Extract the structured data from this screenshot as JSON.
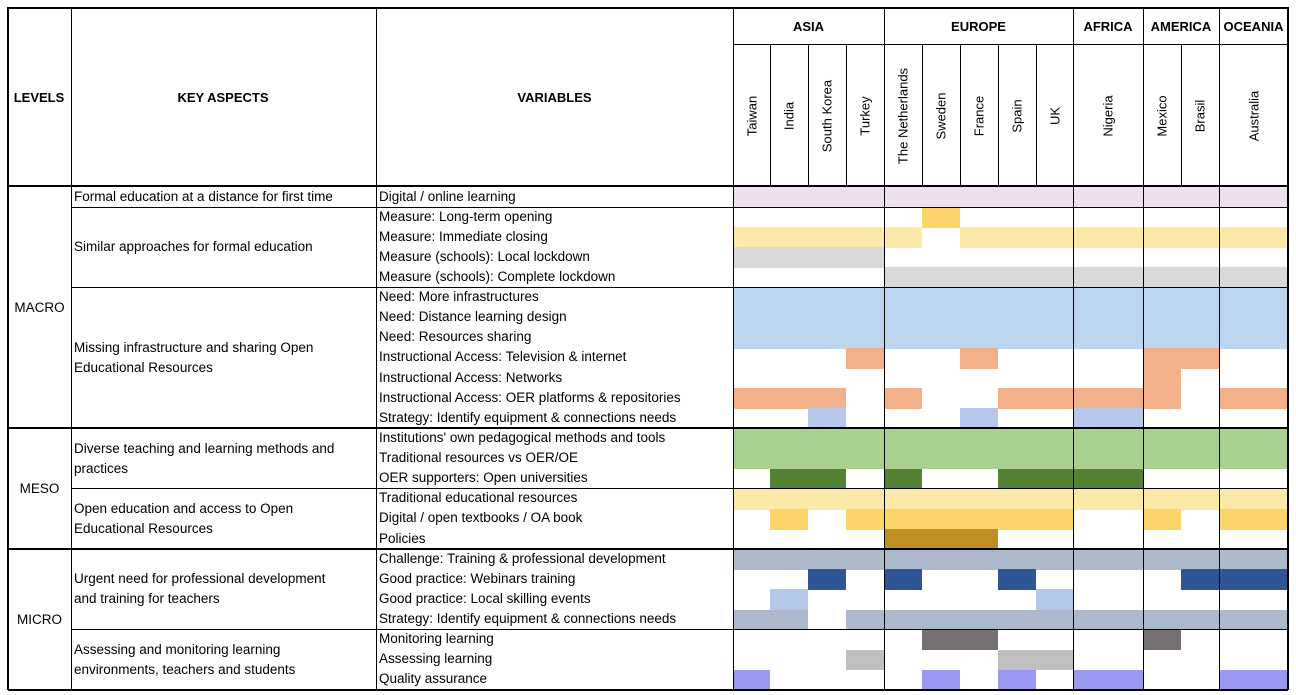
{
  "headers": {
    "levels": "LEVELS",
    "key_aspects": "KEY ASPECTS",
    "variables": "VARIABLES"
  },
  "regions": [
    "ASIA",
    "EUROPE",
    "AFRICA",
    "AMERICA",
    "OCEANIA"
  ],
  "countries": [
    "Taiwan",
    "India",
    "South Korea",
    "Turkey",
    "The Netherlands",
    "Sweden",
    "France",
    "Spain",
    "UK",
    "Nigeria",
    "Mexico",
    "Brasil",
    "Australia"
  ],
  "levels": [
    "MACRO",
    "MESO",
    "MICRO"
  ],
  "aspects": [
    "Formal education at a distance for first time",
    "Similar approaches for formal education",
    "Missing infrastructure and sharing Open Educational Resources",
    "Diverse teaching and learning methods and practices",
    "Open education and access to Open Educational Resources",
    "Urgent need for professional development and training for teachers",
    "Assessing and monitoring learning environments, teachers and students"
  ],
  "variables": [
    "Digital / online learning",
    "Measure: Long-term opening",
    "Measure: Immediate closing",
    "Measure (schools): Local lockdown",
    "Measure (schools): Complete lockdown",
    "Need: More infrastructures",
    "Need: Distance learning design",
    "Need: Resources sharing",
    "Instructional Access: Television & internet",
    "Instructional Access: Networks",
    "Instructional Access: OER platforms & repositories",
    "Strategy: Identify equipment & connections needs",
    "Institutions' own pedagogical methods and tools",
    "Traditional resources vs OER/OE",
    "OER supporters: Open universities",
    "Traditional educational resources",
    "Digital / open textbooks / OA book",
    "Policies",
    "Challenge: Training & professional development",
    "Good practice: Webinars training",
    "Good practice: Local skilling events",
    "Strategy: Identify equipment & connections needs",
    "Monitoring learning",
    "Assessing learning",
    "Quality assurance"
  ],
  "palette": {
    "pk": "#efe0ef",
    "yl": "#fde9a7",
    "yd": "#fdd46a",
    "gy": "#d9d9d9",
    "bl": "#bdd5ee",
    "or": "#f2b08a",
    "lb": "#b5c8ea",
    "gr": "#a9d08e",
    "dg": "#548235",
    "go": "#bf8f22",
    "sl": "#acb9ca",
    "nv": "#2f5597",
    "dk": "#757171",
    "lg": "#bfbfbf",
    "pu": "#9999f2"
  },
  "matrix": [
    [
      "pk",
      "pk",
      "pk",
      "pk",
      "pk",
      "pk",
      "pk",
      "pk",
      "pk",
      "pk",
      "pk",
      "pk",
      "pk"
    ],
    [
      "",
      "",
      "",
      "",
      "",
      "yd",
      "",
      "",
      "",
      "",
      "",
      "",
      ""
    ],
    [
      "yl",
      "yl",
      "yl",
      "yl",
      "yl",
      "",
      "yl",
      "yl",
      "yl",
      "yl",
      "yl",
      "yl",
      "yl"
    ],
    [
      "gy",
      "gy",
      "gy",
      "gy",
      "",
      "",
      "",
      "",
      "",
      "",
      "",
      "",
      ""
    ],
    [
      "",
      "",
      "",
      "",
      "gy",
      "gy",
      "gy",
      "gy",
      "gy",
      "gy",
      "gy",
      "gy",
      "gy"
    ],
    [
      "bl",
      "bl",
      "bl",
      "bl",
      "bl",
      "bl",
      "bl",
      "bl",
      "bl",
      "bl",
      "bl",
      "bl",
      "bl"
    ],
    [
      "bl",
      "bl",
      "bl",
      "bl",
      "bl",
      "bl",
      "bl",
      "bl",
      "bl",
      "bl",
      "bl",
      "bl",
      "bl"
    ],
    [
      "bl",
      "bl",
      "bl",
      "bl",
      "bl",
      "bl",
      "bl",
      "bl",
      "bl",
      "bl",
      "bl",
      "bl",
      "bl"
    ],
    [
      "",
      "",
      "",
      "or",
      "",
      "",
      "or",
      "",
      "",
      "",
      "or",
      "or",
      ""
    ],
    [
      "",
      "",
      "",
      "",
      "",
      "",
      "",
      "",
      "",
      "",
      "or",
      "",
      ""
    ],
    [
      "or",
      "or",
      "or",
      "",
      "or",
      "",
      "",
      "or",
      "or",
      "or",
      "or",
      "",
      "or"
    ],
    [
      "",
      "",
      "lb",
      "",
      "",
      "",
      "lb",
      "",
      "",
      "lb",
      "",
      "",
      ""
    ],
    [
      "gr",
      "gr",
      "gr",
      "gr",
      "gr",
      "gr",
      "gr",
      "gr",
      "gr",
      "gr",
      "gr",
      "gr",
      "gr"
    ],
    [
      "gr",
      "gr",
      "gr",
      "gr",
      "gr",
      "gr",
      "gr",
      "gr",
      "gr",
      "gr",
      "gr",
      "gr",
      "gr"
    ],
    [
      "",
      "dg",
      "dg",
      "",
      "dg",
      "",
      "",
      "dg",
      "dg",
      "dg",
      "",
      "",
      ""
    ],
    [
      "yl",
      "yl",
      "yl",
      "yl",
      "yl",
      "yl",
      "yl",
      "yl",
      "yl",
      "yl",
      "yl",
      "yl",
      "yl"
    ],
    [
      "",
      "yd",
      "",
      "yd",
      "yd",
      "yd",
      "yd",
      "yd",
      "yd",
      "",
      "yd",
      "",
      "yd"
    ],
    [
      "",
      "",
      "",
      "",
      "go",
      "go",
      "go",
      "",
      "",
      "",
      "",
      "",
      ""
    ],
    [
      "sl",
      "sl",
      "sl",
      "sl",
      "sl",
      "sl",
      "sl",
      "sl",
      "sl",
      "sl",
      "sl",
      "sl",
      "sl"
    ],
    [
      "",
      "",
      "nv",
      "",
      "nv",
      "",
      "",
      "nv",
      "",
      "",
      "",
      "nv",
      "nv"
    ],
    [
      "",
      "lb",
      "",
      "",
      "",
      "",
      "",
      "",
      "lb",
      "",
      "",
      "",
      ""
    ],
    [
      "sl",
      "sl",
      "",
      "sl",
      "sl",
      "sl",
      "sl",
      "sl",
      "sl",
      "sl",
      "sl",
      "sl",
      "sl"
    ],
    [
      "",
      "",
      "",
      "",
      "",
      "dk",
      "dk",
      "",
      "",
      "",
      "dk",
      "",
      ""
    ],
    [
      "",
      "",
      "",
      "lg",
      "",
      "",
      "",
      "lg",
      "lg",
      "",
      "",
      "",
      ""
    ],
    [
      "pu",
      "",
      "",
      "",
      "",
      "pu",
      "",
      "pu",
      "",
      "pu",
      "",
      "",
      "pu"
    ]
  ]
}
